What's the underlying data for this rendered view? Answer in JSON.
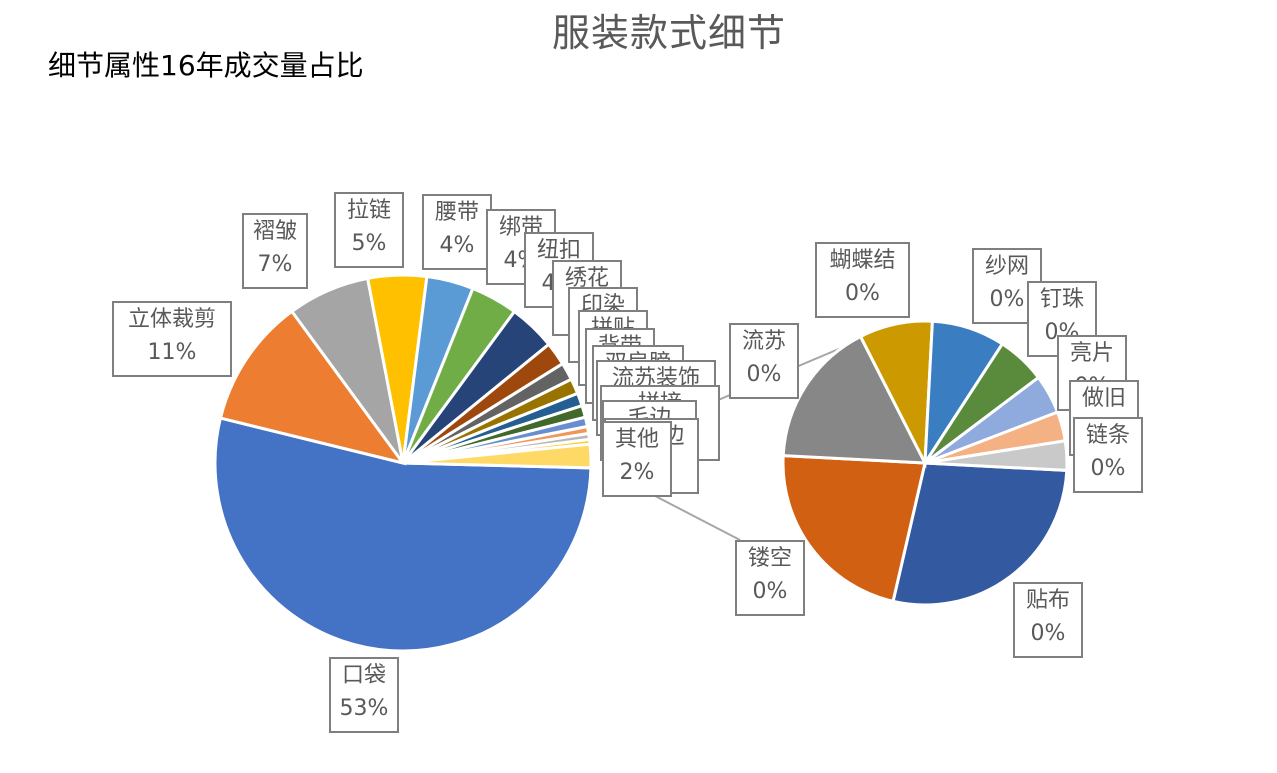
{
  "title": "服装款式细节",
  "subtitle": "细节属性16年成交量占比",
  "chart_data": {
    "type": "pie",
    "subtype": "pie-of-pie",
    "title": "服装款式细节",
    "subtitle": "细节属性16年成交量占比",
    "main_pie": {
      "categories": [
        "口袋",
        "立体裁剪",
        "褶皱",
        "拉链",
        "腰带",
        "绑带",
        "纽扣",
        "绣花",
        "印染",
        "拼贴",
        "背带",
        "双肩膀",
        "流苏装饰",
        "拼接",
        "毛边",
        "破洞边",
        "其他"
      ],
      "values": [
        53,
        11,
        7,
        5,
        4,
        4,
        4,
        2,
        1.5,
        1.3,
        1.1,
        1,
        0.8,
        0.6,
        0.5,
        0.4,
        2
      ],
      "labels": [
        "53%",
        "11%",
        "7%",
        "5%",
        "4%",
        "4%",
        "4%",
        "",
        "",
        "",
        "",
        "",
        "",
        "",
        "",
        "",
        "2%"
      ],
      "colors": [
        "#4472C4",
        "#ED7D31",
        "#A5A5A5",
        "#FFC000",
        "#5B9BD5",
        "#70AD47",
        "#264478",
        "#9E480E",
        "#636363",
        "#997300",
        "#255E91",
        "#43682B",
        "#698ED0",
        "#F1975A",
        "#B7B7B7",
        "#FFCD33",
        "#FFD966"
      ]
    },
    "secondary_pie": {
      "note": "breakdown of 其他 (2%)",
      "categories": [
        "贴布",
        "镂空",
        "流苏",
        "蝴蝶结",
        "纱网",
        "钉珠",
        "亮片",
        "做旧",
        "链条"
      ],
      "values": [
        0.5,
        0.4,
        0.3,
        0.15,
        0.15,
        0.1,
        0.08,
        0.06,
        0.06
      ],
      "labels": [
        "0%",
        "0%",
        "0%",
        "0%",
        "0%",
        "0%",
        "0%",
        "0%",
        "0%"
      ],
      "colors": [
        "#335AA1",
        "#D26012",
        "#878787",
        "#CC9A00",
        "#3A7DC1",
        "#5A8A3C",
        "#8FAADC",
        "#F4B183",
        "#C9C9C9"
      ]
    },
    "legend": "none",
    "data_labels": "callouts with category name and percentage"
  }
}
